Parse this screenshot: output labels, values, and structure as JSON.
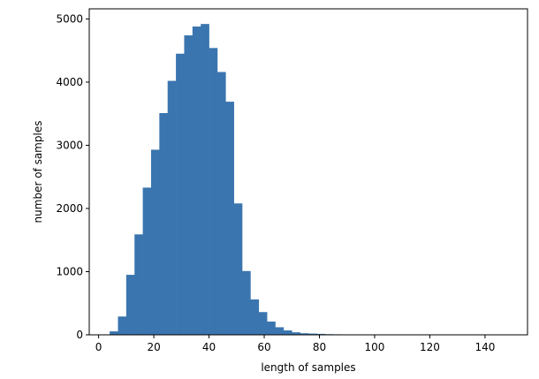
{
  "chart_data": {
    "type": "bar",
    "subtype": "histogram",
    "title": "",
    "xlabel": "length of samples",
    "ylabel": "number of samples",
    "xlim": [
      -3.4,
      155.4
    ],
    "ylim": [
      0,
      5160
    ],
    "x_ticks": [
      0,
      20,
      40,
      60,
      80,
      100,
      120,
      140
    ],
    "y_ticks": [
      0,
      1000,
      2000,
      3000,
      4000,
      5000
    ],
    "bin_width": 3,
    "bin_start": 4.0,
    "bar_color": "#3a75af",
    "grid": false,
    "legend": "none",
    "values": [
      55,
      290,
      950,
      1590,
      2330,
      2930,
      3510,
      4020,
      4450,
      4740,
      4880,
      4920,
      4540,
      4160,
      3690,
      2080,
      1010,
      560,
      360,
      210,
      120,
      70,
      40,
      25,
      20,
      15,
      10,
      8,
      6,
      5,
      3,
      3,
      2,
      2,
      1,
      1,
      1,
      1,
      1,
      1,
      1,
      1,
      1,
      1,
      1,
      1,
      1,
      1,
      1,
      1
    ]
  }
}
